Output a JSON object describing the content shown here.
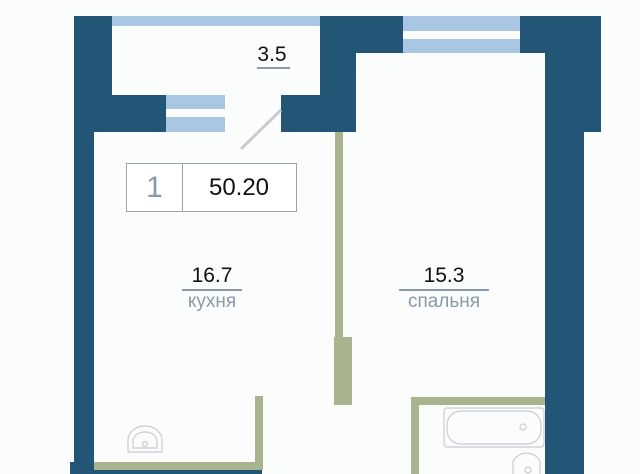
{
  "plan": {
    "rooms_count": "1",
    "total_area": "50.20",
    "rooms": [
      {
        "area": "3.5",
        "name": ""
      },
      {
        "area": "16.7",
        "name": "кухня"
      },
      {
        "area": "15.3",
        "name": "спальня"
      }
    ]
  },
  "colors": {
    "wall": "#235577",
    "window": "#a9c6e2",
    "partition": "#a8b48e"
  }
}
